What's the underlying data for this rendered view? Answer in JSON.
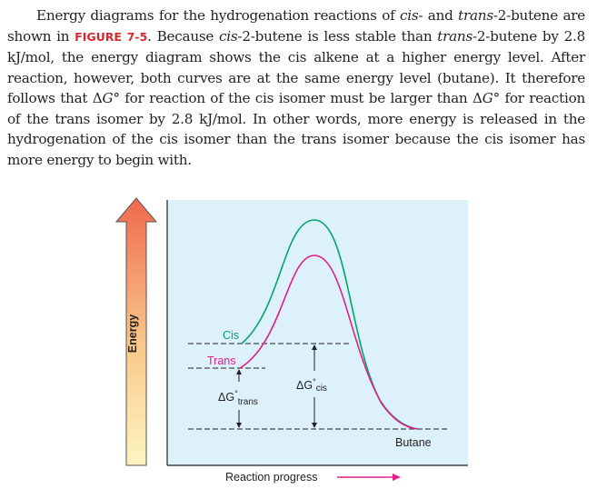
{
  "paragraph": {
    "seg1": "Energy diagrams for the hydrogenation reactions of ",
    "cis": "cis",
    "seg2": "- and ",
    "trans": "trans",
    "seg3": "-2-butene are shown in ",
    "figure_ref": "FIGURE 7-5",
    "seg4": ". Because ",
    "cis2": "cis",
    "seg5": "-2-butene is less stable than ",
    "trans2": "trans",
    "seg6": "-2-butene by 2.8 kJ/mol, the energy diagram shows the cis alkene at a higher energy level. After reaction, however, both curves are at the same energy level (butane). It therefore follows that Δ",
    "g1": "G",
    "seg7": "° for reaction of the cis isomer must be larger than Δ",
    "g2": "G",
    "seg8": "° for reaction of the trans isomer by 2.8 kJ/mol. In other words, more energy is released in the hydrogenation of the cis isomer than the trans isomer because the cis isomer has more energy to begin with."
  },
  "diagram": {
    "energy_axis_label": "Energy",
    "x_axis_label": "Reaction progress",
    "cis_label": "Cis",
    "trans_label": "Trans",
    "butane_label": "Butane",
    "dg_symbol": "ΔG",
    "degree": "°",
    "dg_trans_sub": "trans",
    "dg_cis_sub": "cis",
    "colors": {
      "panel_bg": "#ddf1fa",
      "cis_curve": "#00a56a",
      "trans_curve": "#e0218a",
      "arrow_top": "#ef6a4e",
      "arrow_bottom": "#fdf4c0",
      "progress_arrow": "#e0218a",
      "label_green": "#00a56a",
      "label_magenta": "#e0218a"
    }
  }
}
